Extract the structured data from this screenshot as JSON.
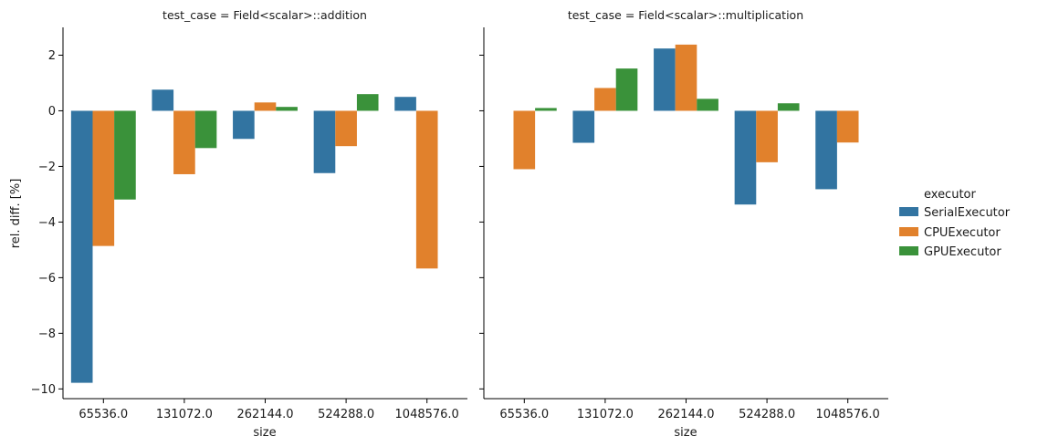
{
  "chart_data": [
    {
      "type": "bar",
      "title": "test_case = Field<scalar>::addition",
      "xlabel": "size",
      "ylabel": "rel. diff. [%]",
      "categories": [
        "65536.0",
        "131072.0",
        "262144.0",
        "524288.0",
        "1048576.0"
      ],
      "ylim": [
        -10.35,
        3.0
      ],
      "yticks": [
        2,
        0,
        -2,
        -4,
        -6,
        -8,
        -10
      ],
      "ytick_labels": [
        "2",
        "0",
        "−2",
        "−4",
        "−6",
        "−8",
        "−10"
      ],
      "series": [
        {
          "name": "SerialExecutor",
          "values": [
            -9.78,
            0.76,
            -1.01,
            -2.24,
            0.5
          ]
        },
        {
          "name": "CPUExecutor",
          "values": [
            -4.86,
            -2.28,
            0.3,
            -1.27,
            -5.67
          ]
        },
        {
          "name": "GPUExecutor",
          "values": [
            -3.19,
            -1.34,
            0.14,
            0.6,
            null
          ]
        }
      ]
    },
    {
      "type": "bar",
      "title": "test_case = Field<scalar>::multiplication",
      "xlabel": "size",
      "ylabel": "",
      "categories": [
        "65536.0",
        "131072.0",
        "262144.0",
        "524288.0",
        "1048576.0"
      ],
      "ylim": [
        -10.35,
        3.0
      ],
      "yticks": [
        2,
        0,
        -2,
        -4,
        -6,
        -8,
        -10
      ],
      "ytick_labels": [
        "",
        "",
        "",
        "",
        "",
        "",
        ""
      ],
      "series": [
        {
          "name": "SerialExecutor",
          "values": [
            null,
            -1.15,
            2.24,
            -3.37,
            -2.82
          ]
        },
        {
          "name": "CPUExecutor",
          "values": [
            -2.1,
            0.82,
            2.38,
            -1.85,
            -1.14
          ]
        },
        {
          "name": "GPUExecutor",
          "values": [
            0.1,
            1.52,
            0.43,
            0.27,
            null
          ]
        }
      ]
    }
  ],
  "legend": {
    "title": "executor",
    "placement": "right",
    "items": [
      "SerialExecutor",
      "CPUExecutor",
      "GPUExecutor"
    ]
  },
  "colors": {
    "SerialExecutor": "#3274a1",
    "CPUExecutor": "#e1812c",
    "GPUExecutor": "#3a923a"
  }
}
